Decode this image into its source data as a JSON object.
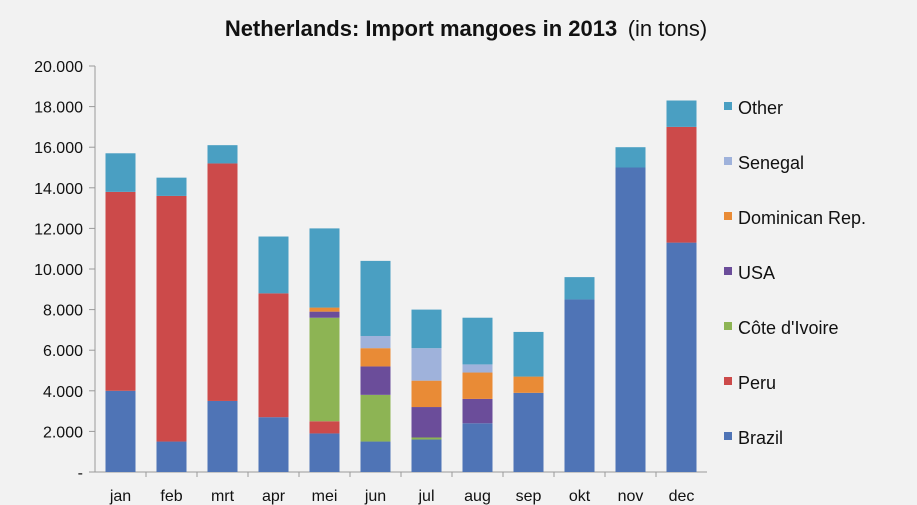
{
  "chart_data": {
    "type": "bar",
    "stacked": true,
    "title": "Netherlands: Import mangoes in 2013",
    "subtitle": "(in tons)",
    "xlabel": "",
    "ylabel": "",
    "categories": [
      "jan",
      "feb",
      "mrt",
      "apr",
      "mei",
      "jun",
      "jul",
      "aug",
      "sep",
      "okt",
      "nov",
      "dec"
    ],
    "ylim": [
      0,
      20000
    ],
    "yticks": [
      0,
      2000,
      4000,
      6000,
      8000,
      10000,
      12000,
      14000,
      16000,
      18000,
      20000
    ],
    "ytick_labels": [
      "-",
      "2.000",
      "4.000",
      "6.000",
      "8.000",
      "10.000",
      "12.000",
      "14.000",
      "16.000",
      "18.000",
      "20.000"
    ],
    "grid": false,
    "legend_position": "right",
    "series": [
      {
        "name": "Brazil",
        "color": "#4f74b6",
        "values": [
          4000,
          1500,
          3500,
          2700,
          1900,
          1500,
          1600,
          2400,
          3900,
          8500,
          15000,
          11300
        ]
      },
      {
        "name": "Peru",
        "color": "#cc4a4a",
        "values": [
          9800,
          12100,
          11700,
          6100,
          600,
          0,
          0,
          0,
          0,
          0,
          0,
          5700
        ]
      },
      {
        "name": "Côte d'Ivoire",
        "color": "#8db454",
        "values": [
          0,
          0,
          0,
          0,
          5100,
          2300,
          100,
          0,
          0,
          0,
          0,
          0
        ]
      },
      {
        "name": "USA",
        "color": "#6b4d9a",
        "values": [
          0,
          0,
          0,
          0,
          300,
          1400,
          1500,
          1200,
          0,
          0,
          0,
          0
        ]
      },
      {
        "name": "Dominican Rep.",
        "color": "#e98b36",
        "values": [
          0,
          0,
          0,
          0,
          200,
          900,
          1300,
          1300,
          800,
          0,
          0,
          0
        ]
      },
      {
        "name": "Senegal",
        "color": "#9fb2db",
        "values": [
          0,
          0,
          0,
          0,
          0,
          600,
          1600,
          400,
          0,
          0,
          0,
          0
        ]
      },
      {
        "name": "Other",
        "color": "#4a9fc2",
        "values": [
          1900,
          900,
          900,
          2800,
          3900,
          3700,
          1900,
          2300,
          2200,
          1100,
          1000,
          1300
        ]
      }
    ],
    "legend_order": [
      "Other",
      "Senegal",
      "Dominican Rep.",
      "USA",
      "Côte d'Ivoire",
      "Peru",
      "Brazil"
    ]
  }
}
